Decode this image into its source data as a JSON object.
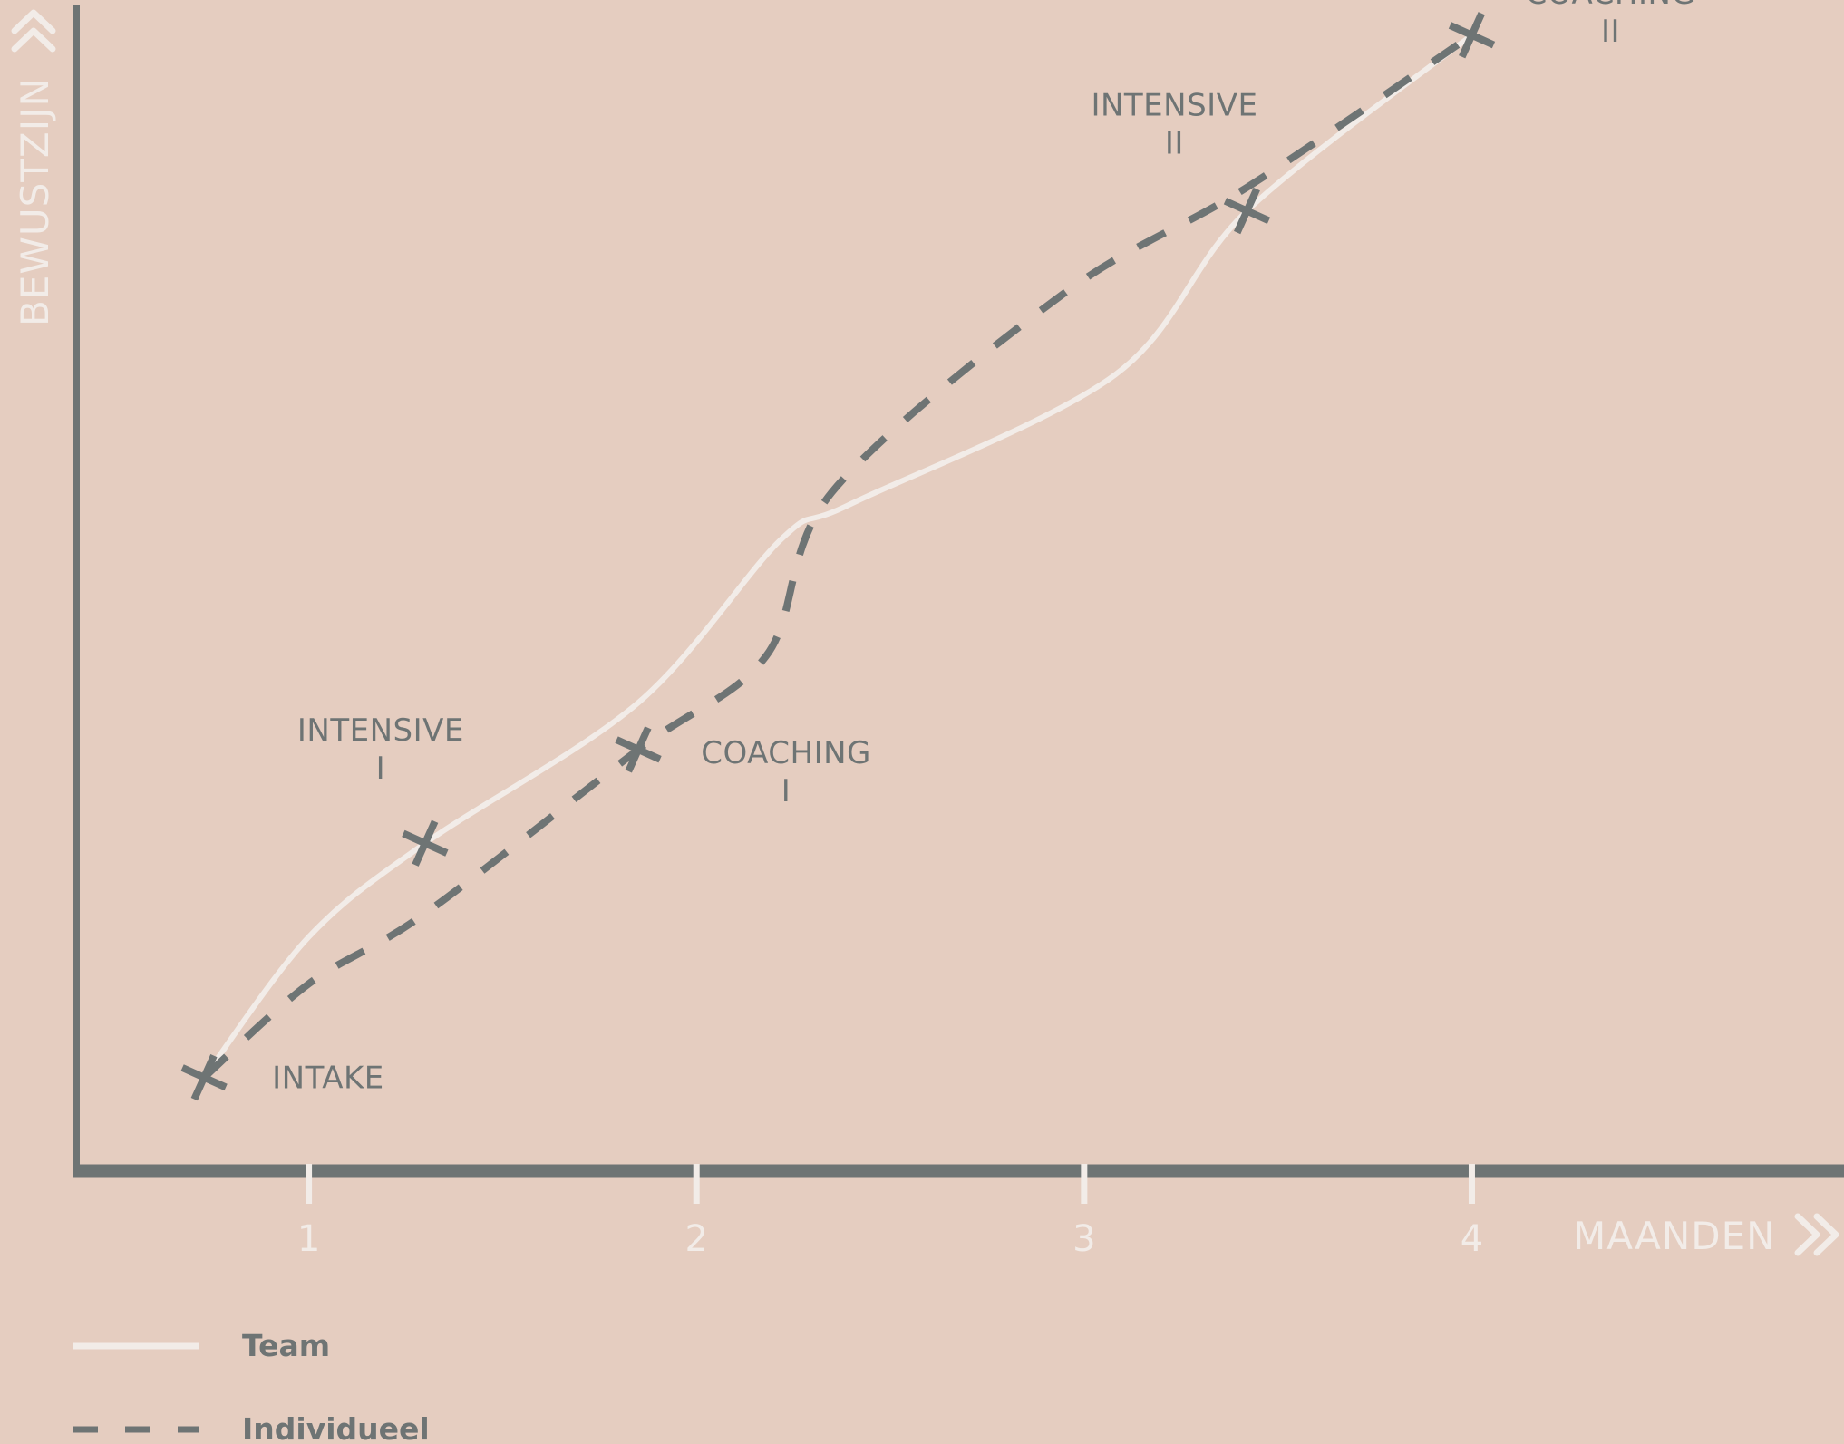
{
  "colors": {
    "background": "#e5cdc0",
    "axis": "#6e7474",
    "team": "#f2ece8",
    "individueel": "#6e7474",
    "marker": "#6e7474",
    "label": "#6e7474",
    "axis_text": "#f2ece8"
  },
  "chart_data": {
    "type": "line",
    "title": "",
    "xlabel": "MAANDEN",
    "ylabel": "BEWUSTZIJN",
    "xlim": [
      0.4,
      4.96
    ],
    "ylim": [
      0,
      100
    ],
    "x_ticks": [
      "1",
      "2",
      "3",
      "4"
    ],
    "grid": false,
    "legend_position": "bottom-left",
    "series": [
      {
        "name": "Team",
        "style": "solid",
        "points": [
          [
            0.73,
            8
          ],
          [
            1.0,
            20
          ],
          [
            1.3,
            28
          ],
          [
            1.85,
            40
          ],
          [
            2.22,
            54
          ],
          [
            2.4,
            57
          ],
          [
            3.08,
            68
          ],
          [
            3.42,
            82
          ],
          [
            4.0,
            97
          ]
        ]
      },
      {
        "name": "Individueel",
        "style": "dashed",
        "points": [
          [
            0.73,
            8
          ],
          [
            1.0,
            16
          ],
          [
            1.3,
            22
          ],
          [
            1.85,
            36
          ],
          [
            2.18,
            44
          ],
          [
            2.35,
            58
          ],
          [
            2.95,
            75
          ],
          [
            3.42,
            84
          ],
          [
            4.0,
            97
          ]
        ]
      }
    ],
    "milestones": [
      {
        "x": 0.73,
        "y": 8,
        "line1": "INTAKE",
        "line2": ""
      },
      {
        "x": 1.3,
        "y": 28,
        "line1": "INTENSIVE",
        "line2": "I"
      },
      {
        "x": 1.85,
        "y": 36,
        "line1": "COACHING",
        "line2": "I"
      },
      {
        "x": 3.42,
        "y": 82,
        "line1": "INTENSIVE",
        "line2": "II"
      },
      {
        "x": 4.0,
        "y": 97,
        "line1": "COACHING",
        "line2": "II"
      }
    ]
  }
}
